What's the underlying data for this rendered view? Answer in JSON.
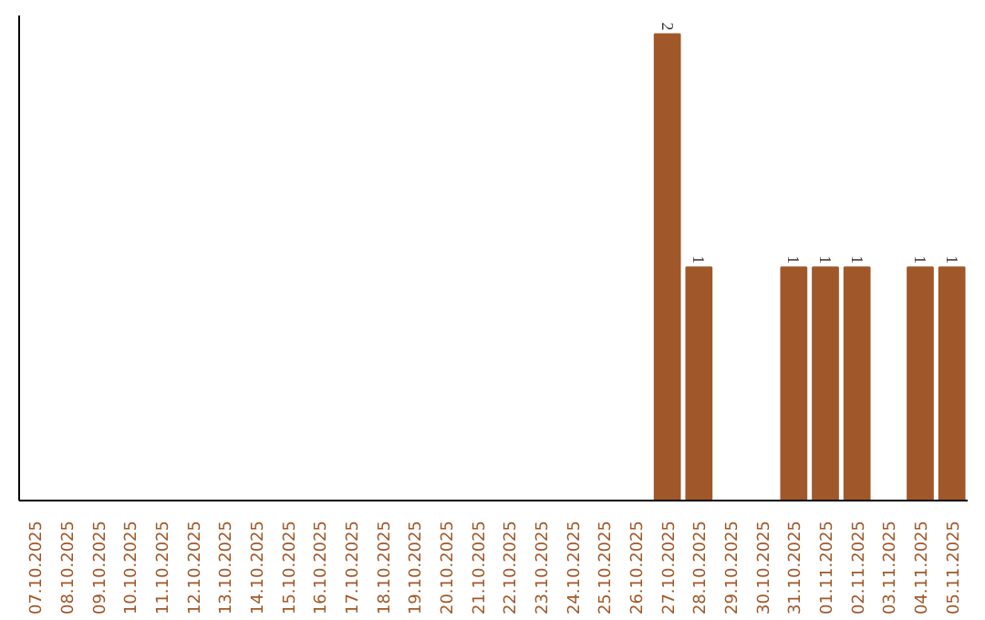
{
  "chart_data": {
    "type": "bar",
    "categories": [
      "07.10.2025",
      "08.10.2025",
      "09.10.2025",
      "10.10.2025",
      "11.10.2025",
      "12.10.2025",
      "13.10.2025",
      "14.10.2025",
      "15.10.2025",
      "16.10.2025",
      "17.10.2025",
      "18.10.2025",
      "19.10.2025",
      "20.10.2025",
      "21.10.2025",
      "22.10.2025",
      "23.10.2025",
      "24.10.2025",
      "25.10.2025",
      "26.10.2025",
      "27.10.2025",
      "28.10.2025",
      "29.10.2025",
      "30.10.2025",
      "31.10.2025",
      "01.11.2025",
      "02.11.2025",
      "03.11.2025",
      "04.11.2025",
      "05.11.2025"
    ],
    "values": [
      null,
      null,
      null,
      null,
      null,
      null,
      null,
      null,
      null,
      null,
      null,
      null,
      null,
      null,
      null,
      null,
      null,
      null,
      null,
      null,
      2,
      1,
      null,
      null,
      1,
      1,
      1,
      null,
      1,
      1
    ],
    "data_labels": true,
    "color": "#a0582a",
    "ylim": [
      0,
      2.08
    ],
    "tick_labels": "x"
  }
}
